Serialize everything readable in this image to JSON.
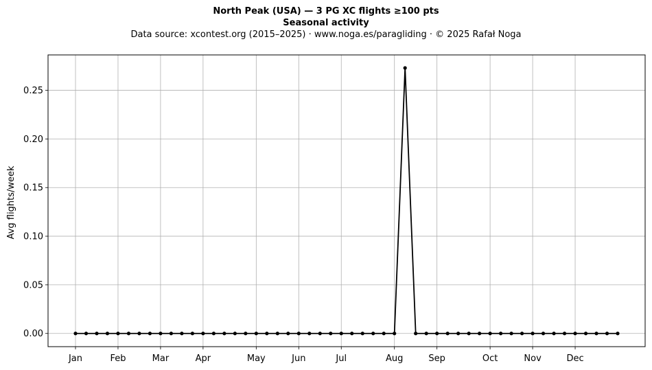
{
  "chart_data": {
    "type": "line",
    "title": "North Peak (USA)  —  3 PG XC flights ≥100 pts",
    "subtitle": "Seasonal activity",
    "source": "Data source: xcontest.org (2015–2025)  ·  www.noga.es/paragliding  ·  © 2025 Rafał Noga",
    "xlabel": "",
    "ylabel": "Avg flights/week",
    "ylim": [
      -0.0136,
      0.2864
    ],
    "grid": true,
    "yticks": [
      0.0,
      0.05,
      0.1,
      0.15,
      0.2,
      0.25
    ],
    "ytick_labels": [
      "0.00",
      "0.05",
      "0.10",
      "0.15",
      "0.20",
      "0.25"
    ],
    "xticks": [
      {
        "label": "Jan",
        "week": 1
      },
      {
        "label": "Feb",
        "week": 5
      },
      {
        "label": "Mar",
        "week": 9
      },
      {
        "label": "Apr",
        "week": 13
      },
      {
        "label": "May",
        "week": 18
      },
      {
        "label": "Jun",
        "week": 22
      },
      {
        "label": "Jul",
        "week": 26
      },
      {
        "label": "Aug",
        "week": 31
      },
      {
        "label": "Sep",
        "week": 35
      },
      {
        "label": "Oct",
        "week": 40
      },
      {
        "label": "Nov",
        "week": 44
      },
      {
        "label": "Dec",
        "week": 48
      }
    ],
    "series": [
      {
        "color": "#000000",
        "x": [
          1,
          2,
          3,
          4,
          5,
          6,
          7,
          8,
          9,
          10,
          11,
          12,
          13,
          14,
          15,
          16,
          17,
          18,
          19,
          20,
          21,
          22,
          23,
          24,
          25,
          26,
          27,
          28,
          29,
          30,
          31,
          32,
          33,
          34,
          35,
          36,
          37,
          38,
          39,
          40,
          41,
          42,
          43,
          44,
          45,
          46,
          47,
          48,
          49,
          50,
          51,
          52
        ],
        "values": [
          0,
          0,
          0,
          0,
          0,
          0,
          0,
          0,
          0,
          0,
          0,
          0,
          0,
          0,
          0,
          0,
          0,
          0,
          0,
          0,
          0,
          0,
          0,
          0,
          0,
          0,
          0,
          0,
          0,
          0,
          0,
          0.273,
          0,
          0,
          0,
          0,
          0,
          0,
          0,
          0,
          0,
          0,
          0,
          0,
          0,
          0,
          0,
          0,
          0,
          0,
          0,
          0
        ]
      }
    ]
  }
}
